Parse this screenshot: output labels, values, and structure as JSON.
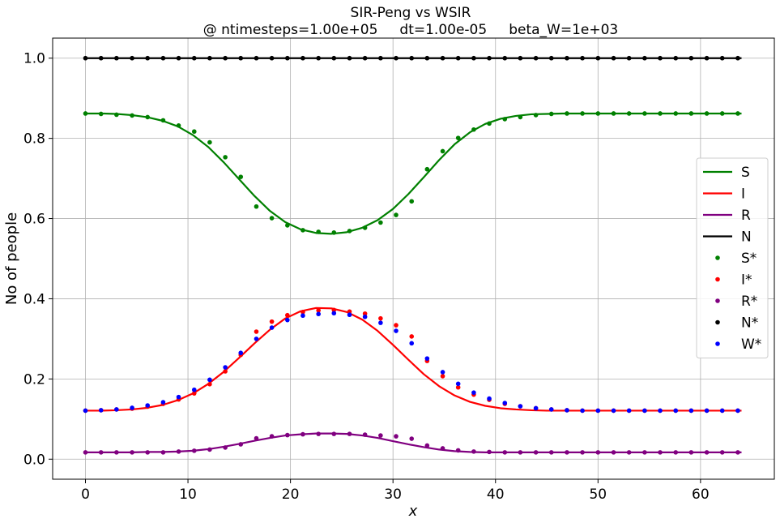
{
  "chart_data": {
    "type": "line",
    "title": "SIR-Peng vs WSIR",
    "subtitle": "@ ntimesteps=1.00e+05     dt=1.00e-05     beta_W=1e+03",
    "xlabel": "x",
    "ylabel": "No of people",
    "xlim": [
      -3.2,
      67.2
    ],
    "ylim": [
      -0.05,
      1.05
    ],
    "xticks": [
      "0",
      "10",
      "20",
      "30",
      "40",
      "50",
      "60"
    ],
    "yticks": [
      "0.0",
      "0.2",
      "0.4",
      "0.6",
      "0.8",
      "1.0"
    ],
    "grid": true,
    "legend_position": "right",
    "x": [
      0,
      1.5,
      3,
      4.5,
      6,
      7.5,
      9,
      10.5,
      12,
      13.5,
      15,
      16.5,
      18,
      19.5,
      21,
      22.5,
      24,
      25.5,
      27,
      28.5,
      30,
      31.5,
      33,
      34.5,
      36,
      37.5,
      39,
      40.5,
      42,
      43.5,
      45,
      46.5,
      48,
      49.5,
      51,
      52.5,
      54,
      55.5,
      57,
      58.5,
      60,
      61.5,
      63,
      64
    ],
    "series": [
      {
        "name": "S",
        "kind": "line",
        "color": "#008000",
        "values": [
          0.862,
          0.862,
          0.861,
          0.858,
          0.853,
          0.844,
          0.83,
          0.808,
          0.778,
          0.74,
          0.698,
          0.656,
          0.619,
          0.591,
          0.573,
          0.564,
          0.562,
          0.566,
          0.577,
          0.596,
          0.624,
          0.661,
          0.703,
          0.746,
          0.785,
          0.815,
          0.836,
          0.849,
          0.856,
          0.86,
          0.861,
          0.862,
          0.862,
          0.862,
          0.862,
          0.862,
          0.862,
          0.862,
          0.862,
          0.862,
          0.862,
          0.862,
          0.862,
          0.862
        ]
      },
      {
        "name": "I",
        "kind": "line",
        "color": "#ff0000",
        "values": [
          0.121,
          0.121,
          0.122,
          0.124,
          0.128,
          0.135,
          0.147,
          0.164,
          0.188,
          0.218,
          0.253,
          0.289,
          0.323,
          0.351,
          0.369,
          0.377,
          0.376,
          0.367,
          0.348,
          0.32,
          0.285,
          0.248,
          0.212,
          0.182,
          0.159,
          0.143,
          0.133,
          0.127,
          0.124,
          0.122,
          0.121,
          0.121,
          0.121,
          0.121,
          0.121,
          0.121,
          0.121,
          0.121,
          0.121,
          0.121,
          0.121,
          0.121,
          0.121,
          0.121
        ]
      },
      {
        "name": "R",
        "kind": "line",
        "color": "#800080",
        "values": [
          0.017,
          0.017,
          0.017,
          0.017,
          0.018,
          0.018,
          0.019,
          0.021,
          0.025,
          0.031,
          0.038,
          0.046,
          0.053,
          0.059,
          0.062,
          0.064,
          0.064,
          0.063,
          0.059,
          0.053,
          0.045,
          0.037,
          0.03,
          0.024,
          0.02,
          0.018,
          0.017,
          0.017,
          0.017,
          0.017,
          0.017,
          0.017,
          0.017,
          0.017,
          0.017,
          0.017,
          0.017,
          0.017,
          0.017,
          0.017,
          0.017,
          0.017,
          0.017,
          0.017
        ]
      },
      {
        "name": "N",
        "kind": "line",
        "color": "#000000",
        "values": [
          1.0,
          1.0,
          1.0,
          1.0,
          1.0,
          1.0,
          1.0,
          1.0,
          1.0,
          1.0,
          1.0,
          1.0,
          1.0,
          1.0,
          1.0,
          1.0,
          1.0,
          1.0,
          1.0,
          1.0,
          1.0,
          1.0,
          1.0,
          1.0,
          1.0,
          1.0,
          1.0,
          1.0,
          1.0,
          1.0,
          1.0,
          1.0,
          1.0,
          1.0,
          1.0,
          1.0,
          1.0,
          1.0,
          1.0,
          1.0,
          1.0,
          1.0,
          1.0,
          1.0
        ]
      },
      {
        "name": "S*",
        "kind": "scatter",
        "color": "#008000",
        "x": [
          0,
          1.52,
          3.03,
          4.55,
          6.06,
          7.58,
          9.09,
          10.61,
          12.12,
          13.64,
          15.15,
          16.67,
          18.18,
          19.7,
          21.21,
          22.73,
          24.24,
          25.76,
          27.27,
          28.79,
          30.3,
          31.82,
          33.33,
          34.85,
          36.36,
          37.88,
          39.39,
          40.91,
          42.42,
          43.94,
          45.45,
          46.97,
          48.48,
          50,
          51.52,
          53.03,
          54.55,
          56.06,
          57.58,
          59.09,
          60.61,
          62.12,
          63.64
        ],
        "values": [
          0.862,
          0.861,
          0.859,
          0.857,
          0.853,
          0.845,
          0.832,
          0.817,
          0.79,
          0.753,
          0.704,
          0.63,
          0.601,
          0.583,
          0.571,
          0.567,
          0.565,
          0.569,
          0.577,
          0.59,
          0.609,
          0.643,
          0.723,
          0.768,
          0.801,
          0.822,
          0.837,
          0.848,
          0.853,
          0.858,
          0.861,
          0.862,
          0.862,
          0.862,
          0.862,
          0.862,
          0.862,
          0.862,
          0.862,
          0.862,
          0.862,
          0.862,
          0.862
        ]
      },
      {
        "name": "I*",
        "kind": "scatter",
        "color": "#ff0000",
        "x": [
          0,
          1.52,
          3.03,
          4.55,
          6.06,
          7.58,
          9.09,
          10.61,
          12.12,
          13.64,
          15.15,
          16.67,
          18.18,
          19.7,
          21.21,
          22.73,
          24.24,
          25.76,
          27.27,
          28.79,
          30.3,
          31.82,
          33.33,
          34.85,
          36.36,
          37.88,
          39.39,
          40.91,
          42.42,
          43.94,
          45.45,
          46.97,
          48.48,
          50,
          51.52,
          53.03,
          54.55,
          56.06,
          57.58,
          59.09,
          60.61,
          62.12,
          63.64
        ],
        "values": [
          0.121,
          0.122,
          0.124,
          0.126,
          0.131,
          0.138,
          0.149,
          0.164,
          0.187,
          0.219,
          0.26,
          0.318,
          0.343,
          0.359,
          0.367,
          0.371,
          0.372,
          0.368,
          0.363,
          0.351,
          0.334,
          0.306,
          0.245,
          0.207,
          0.179,
          0.161,
          0.148,
          0.138,
          0.132,
          0.127,
          0.124,
          0.122,
          0.121,
          0.121,
          0.121,
          0.121,
          0.121,
          0.121,
          0.121,
          0.121,
          0.121,
          0.121,
          0.121
        ]
      },
      {
        "name": "R*",
        "kind": "scatter",
        "color": "#800080",
        "x": [
          0,
          1.52,
          3.03,
          4.55,
          6.06,
          7.58,
          9.09,
          10.61,
          12.12,
          13.64,
          15.15,
          16.67,
          18.18,
          19.7,
          21.21,
          22.73,
          24.24,
          25.76,
          27.27,
          28.79,
          30.3,
          31.82,
          33.33,
          34.85,
          36.36,
          37.88,
          39.39,
          40.91,
          42.42,
          43.94,
          45.45,
          46.97,
          48.48,
          50,
          51.52,
          53.03,
          54.55,
          56.06,
          57.58,
          59.09,
          60.61,
          62.12,
          63.64
        ],
        "values": [
          0.017,
          0.017,
          0.017,
          0.017,
          0.017,
          0.017,
          0.019,
          0.021,
          0.024,
          0.029,
          0.037,
          0.052,
          0.057,
          0.06,
          0.062,
          0.063,
          0.063,
          0.063,
          0.061,
          0.059,
          0.057,
          0.051,
          0.034,
          0.027,
          0.022,
          0.019,
          0.018,
          0.017,
          0.017,
          0.017,
          0.017,
          0.017,
          0.017,
          0.017,
          0.017,
          0.017,
          0.017,
          0.017,
          0.017,
          0.017,
          0.017,
          0.017,
          0.017
        ]
      },
      {
        "name": "N*",
        "kind": "scatter",
        "color": "#000000",
        "x": [
          0,
          1.52,
          3.03,
          4.55,
          6.06,
          7.58,
          9.09,
          10.61,
          12.12,
          13.64,
          15.15,
          16.67,
          18.18,
          19.7,
          21.21,
          22.73,
          24.24,
          25.76,
          27.27,
          28.79,
          30.3,
          31.82,
          33.33,
          34.85,
          36.36,
          37.88,
          39.39,
          40.91,
          42.42,
          43.94,
          45.45,
          46.97,
          48.48,
          50,
          51.52,
          53.03,
          54.55,
          56.06,
          57.58,
          59.09,
          60.61,
          62.12,
          63.64
        ],
        "values": [
          1.0,
          1.0,
          1.0,
          1.0,
          1.0,
          1.0,
          1.0,
          1.0,
          1.0,
          1.0,
          1.0,
          1.0,
          1.0,
          1.0,
          1.0,
          1.0,
          1.0,
          1.0,
          1.0,
          1.0,
          1.0,
          1.0,
          1.0,
          1.0,
          1.0,
          1.0,
          1.0,
          1.0,
          1.0,
          1.0,
          1.0,
          1.0,
          1.0,
          1.0,
          1.0,
          1.0,
          1.0,
          1.0,
          1.0,
          1.0,
          1.0,
          1.0,
          1.0
        ]
      },
      {
        "name": "W*",
        "kind": "scatter",
        "color": "#0000ff",
        "x": [
          0,
          1.52,
          3.03,
          4.55,
          6.06,
          7.58,
          9.09,
          10.61,
          12.12,
          13.64,
          15.15,
          16.67,
          18.18,
          19.7,
          21.21,
          22.73,
          24.24,
          25.76,
          27.27,
          28.79,
          30.3,
          31.82,
          33.33,
          34.85,
          36.36,
          37.88,
          39.39,
          40.91,
          42.42,
          43.94,
          45.45,
          46.97,
          48.48,
          50,
          51.52,
          53.03,
          54.55,
          56.06,
          57.58,
          59.09,
          60.61,
          62.12,
          63.64
        ],
        "values": [
          0.121,
          0.122,
          0.124,
          0.128,
          0.134,
          0.142,
          0.155,
          0.173,
          0.198,
          0.229,
          0.265,
          0.3,
          0.328,
          0.347,
          0.358,
          0.362,
          0.364,
          0.36,
          0.355,
          0.34,
          0.32,
          0.289,
          0.251,
          0.217,
          0.188,
          0.166,
          0.151,
          0.14,
          0.132,
          0.127,
          0.124,
          0.122,
          0.121,
          0.121,
          0.121,
          0.121,
          0.121,
          0.121,
          0.121,
          0.121,
          0.121,
          0.121,
          0.121
        ]
      }
    ]
  }
}
